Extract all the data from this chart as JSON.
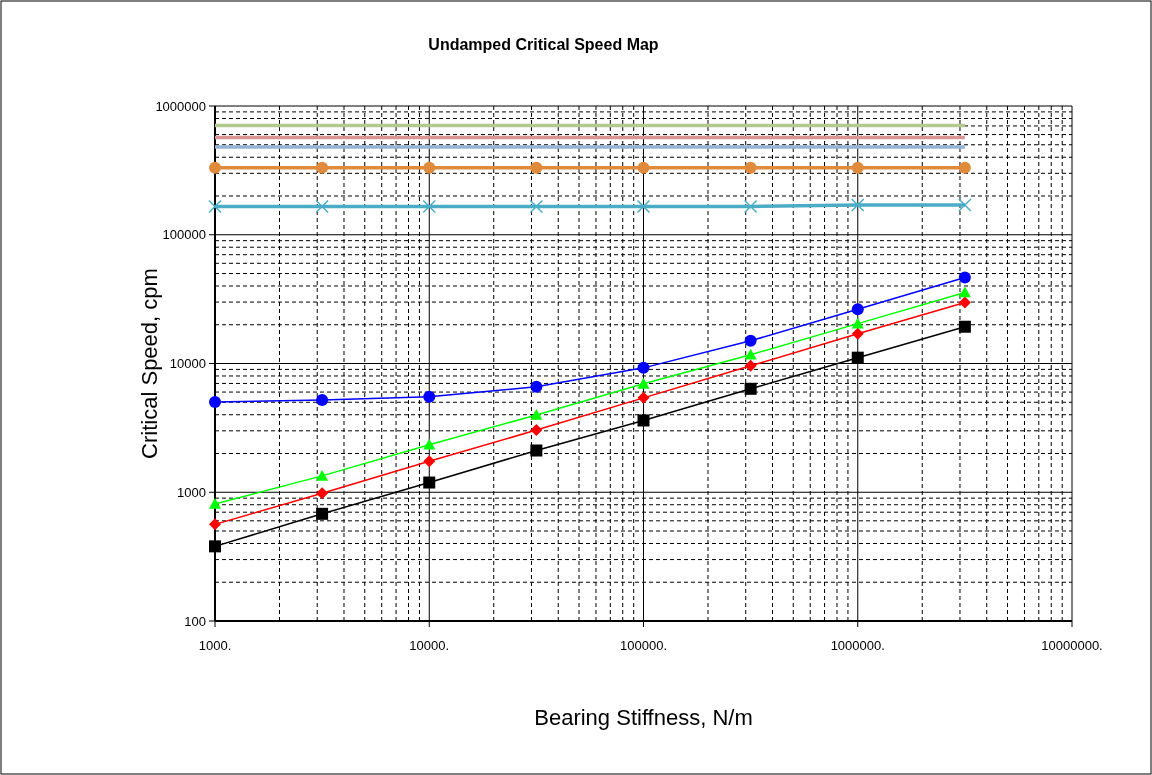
{
  "chart_data": {
    "type": "line",
    "title": "Undamped Critical Speed Map",
    "xlabel": "Bearing Stiffness, N/m",
    "ylabel": "Critical Speed, cpm",
    "log": "xy",
    "grid": true,
    "x": [
      1000,
      3162,
      10000,
      31623,
      100000,
      316228,
      1000000,
      3162278
    ],
    "xlim": [
      1000,
      10000000
    ],
    "xticks": [
      {
        "value": 1000,
        "label": "1000."
      },
      {
        "value": 10000,
        "label": "10000."
      },
      {
        "value": 100000,
        "label": "100000."
      },
      {
        "value": 1000000,
        "label": "1000000."
      },
      {
        "value": 10000000,
        "label": "10000000."
      }
    ],
    "ylim": [
      100,
      1000000
    ],
    "yticks": [
      100,
      1000,
      10000,
      100000,
      1000000
    ],
    "series": [
      {
        "color": "#000000",
        "marker": "square",
        "values": [
          380,
          680,
          1190,
          2110,
          3610,
          6360,
          11100,
          19300
        ]
      },
      {
        "color": "#ff0000",
        "marker": "diamond",
        "values": [
          563,
          982,
          1740,
          3040,
          5410,
          9590,
          17000,
          29800
        ]
      },
      {
        "color": "#00ff00",
        "marker": "triangle",
        "values": [
          811,
          1340,
          2340,
          3980,
          6950,
          11700,
          20400,
          35600
        ]
      },
      {
        "color": "#0000ff",
        "marker": "circle",
        "values": [
          5030,
          5210,
          5510,
          6600,
          9250,
          15000,
          26400,
          46500
        ]
      },
      {
        "color": "#4bacc6",
        "marker": "cross",
        "values": [
          166000,
          166000,
          166000,
          166000,
          166000,
          166000,
          170000,
          170000
        ]
      },
      {
        "color": "#e08a3c",
        "marker": "circle",
        "values": [
          332000,
          332000,
          332000,
          332000,
          332000,
          332000,
          332000,
          332000
        ]
      },
      {
        "color": "#95b3d7",
        "marker": "none",
        "values": [
          480000,
          480000,
          480000,
          480000,
          480000,
          480000,
          480000,
          480000
        ]
      },
      {
        "color": "#d99694",
        "marker": "none",
        "values": [
          569000,
          569000,
          569000,
          569000,
          569000,
          569000,
          569000,
          569000
        ]
      },
      {
        "color": "#b3c98e",
        "marker": "none",
        "values": [
          706000,
          706000,
          706000,
          706000,
          706000,
          706000,
          706000,
          706000
        ]
      }
    ]
  }
}
